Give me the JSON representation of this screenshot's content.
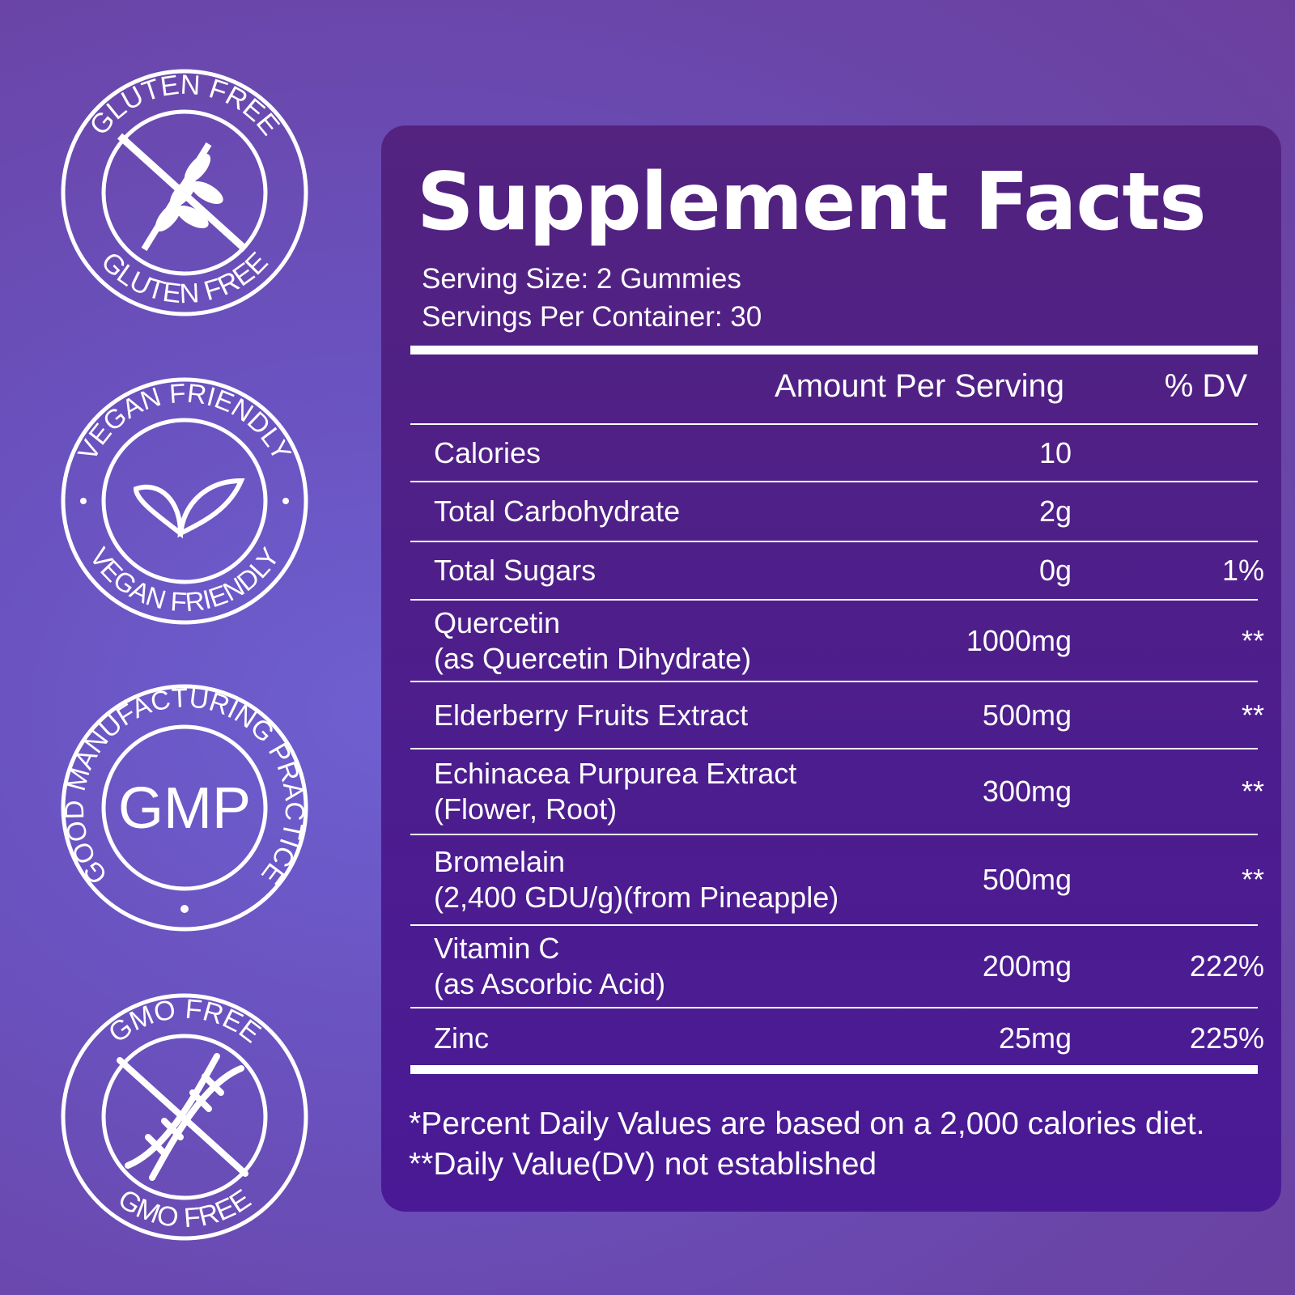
{
  "badges": [
    {
      "text_top": "GLUTEN FREE",
      "text_bottom": "GLUTEN FREE",
      "icon": "wheat-crossed-icon"
    },
    {
      "text_top": "VEGAN FRIENDLY",
      "text_bottom": "VEGAN FRIENDLY",
      "icon": "leaf-icon"
    },
    {
      "text_top": "GOOD MANUFACTURING PRACTICE",
      "center": "GMP",
      "icon": "gmp-seal"
    },
    {
      "text_top": "GMO FREE",
      "text_bottom": "GMO FREE",
      "icon": "dna-crossed-icon"
    }
  ],
  "facts": {
    "title": "Supplement Facts",
    "serving_size": "Serving Size: 2 Gummies",
    "servings_per_container": "Servings Per Container: 30",
    "header_amount": "Amount Per Serving",
    "header_dv": "% DV",
    "rows": [
      {
        "name": "Calories",
        "sub": "",
        "amount": "10",
        "dv": ""
      },
      {
        "name": "Total Carbohydrate",
        "sub": "",
        "amount": "2g",
        "dv": ""
      },
      {
        "name": "Total Sugars",
        "sub": "",
        "amount": "0g",
        "dv": "1%"
      },
      {
        "name": "Quercetin",
        "sub": "(as Quercetin Dihydrate)",
        "amount": "1000mg",
        "dv": "**"
      },
      {
        "name": "Elderberry Fruits Extract",
        "sub": "",
        "amount": "500mg",
        "dv": "**"
      },
      {
        "name": "Echinacea Purpurea Extract",
        "sub": "(Flower, Root)",
        "amount": "300mg",
        "dv": "**"
      },
      {
        "name": "Bromelain",
        "sub": "(2,400 GDU/g)(from Pineapple)",
        "amount": "500mg",
        "dv": "**"
      },
      {
        "name": "Vitamin C",
        "sub": "(as Ascorbic Acid)",
        "amount": "200mg",
        "dv": "222%"
      },
      {
        "name": "Zinc",
        "sub": "",
        "amount": "25mg",
        "dv": "225%"
      }
    ],
    "footnote1": "*Percent Daily Values are based on a 2,000 calories diet.",
    "footnote2": "**Daily Value(DV) not established"
  }
}
